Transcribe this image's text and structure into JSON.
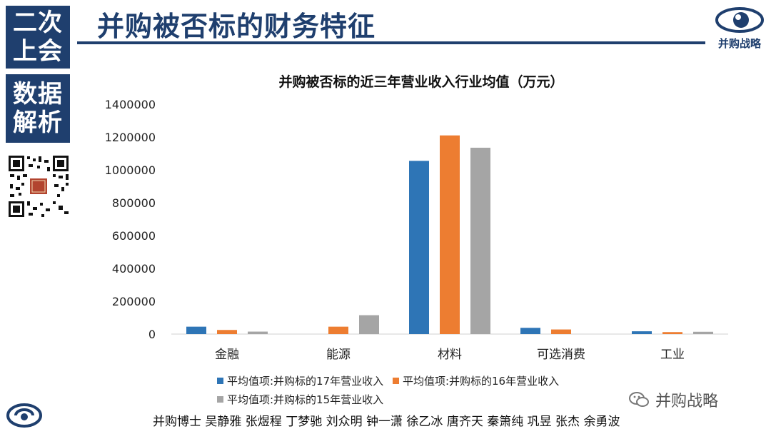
{
  "sidebar": {
    "top_lines": [
      "二次",
      "上会"
    ],
    "mid_lines": [
      "数据",
      "解析"
    ]
  },
  "header": {
    "title": "并购被否标的财务特征",
    "logo_text": "并购战略"
  },
  "colors": {
    "navy": "#1f3f6e",
    "series_17": "#2e75b6",
    "series_16": "#ed7d31",
    "series_15": "#a5a5a5"
  },
  "chart_data": {
    "type": "bar",
    "title": "并购被否标的近三年营业收入行业均值（万元）",
    "categories": [
      "金融",
      "能源",
      "材料",
      "可选消费",
      "工业"
    ],
    "series": [
      {
        "name": "平均值项:并购标的17年营业收入",
        "values": [
          45000,
          0,
          1055000,
          38000,
          17000
        ]
      },
      {
        "name": "平均值项:并购标的16年营业收入",
        "values": [
          25000,
          45000,
          1210000,
          28000,
          12000
        ]
      },
      {
        "name": "平均值项:并购标的15年营业收入",
        "values": [
          15000,
          115000,
          1135000,
          0,
          14000
        ]
      }
    ],
    "yticks": [
      "0",
      "200000",
      "400000",
      "600000",
      "800000",
      "1000000",
      "1200000",
      "1400000"
    ],
    "ylim": [
      0,
      1400000
    ],
    "grid": false,
    "legend_position": "bottom"
  },
  "footer": {
    "authors": "并购博士 吴静雅 张煜程 丁梦驰 刘众明 钟一潇 徐乙冰 唐齐天 秦箫纯 巩昱 张杰 余勇波",
    "wechat_label": "并购战略"
  }
}
